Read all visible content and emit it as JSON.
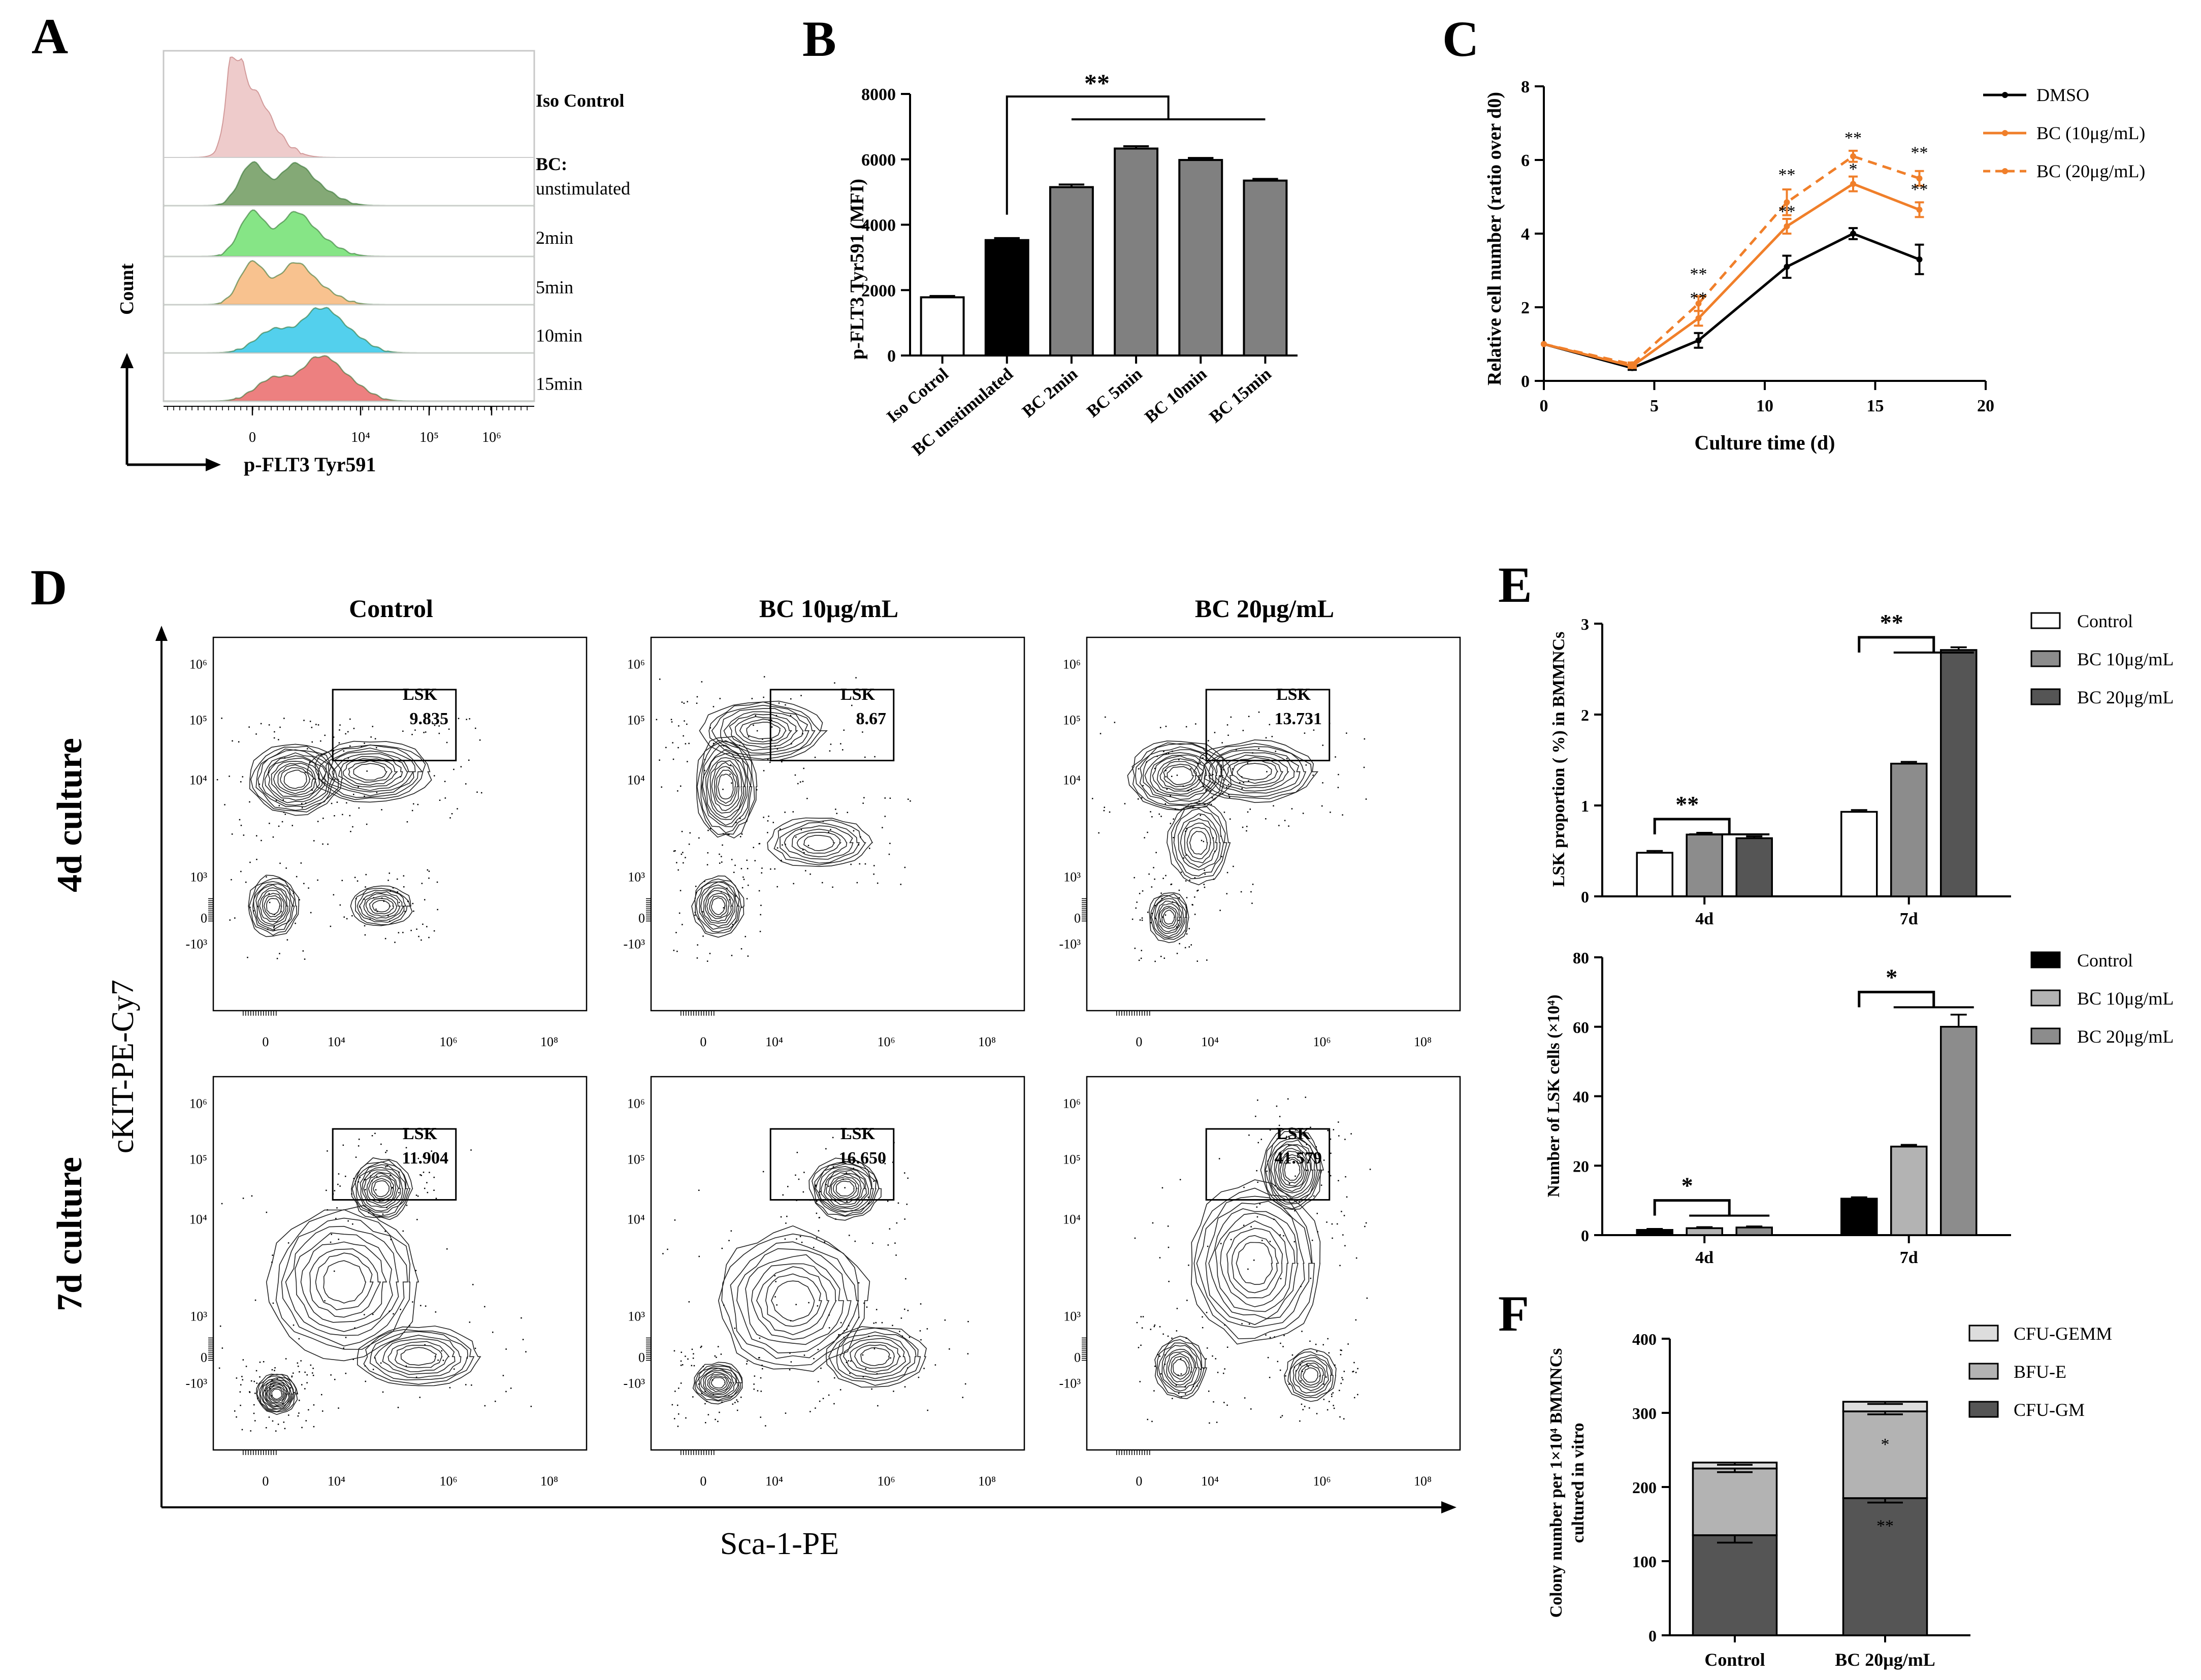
{
  "colors": {
    "iso": "#e8b9b9",
    "unstim": "#6f9a5e",
    "m2": "#71e071",
    "m5": "#f7b77b",
    "m10": "#35c8ea",
    "m15": "#ea6a6a",
    "orange": "#f07f2a",
    "dark_gray": "#555555",
    "mid_gray": "#8c8c8c",
    "light_gray": "#b3b3b3",
    "black": "#000000"
  },
  "panels": {
    "A": {
      "letter": "A",
      "ylabel": "Count",
      "xlabel": "p-FLT3 Tyr591",
      "ticks": [
        "0",
        "10⁴",
        "10⁵",
        "10⁶"
      ],
      "rows": [
        {
          "label": "Iso Control",
          "bold": true,
          "color_key": "iso",
          "shape": "iso"
        },
        {
          "label": "BC:",
          "label2": "unstimulated",
          "bold": true,
          "color_key": "unstim",
          "shape": "bimodal"
        },
        {
          "label": "2min",
          "bold": false,
          "color_key": "m2",
          "shape": "bimodal"
        },
        {
          "label": "5min",
          "bold": false,
          "color_key": "m5",
          "shape": "bimodal"
        },
        {
          "label": "10min",
          "bold": false,
          "color_key": "m10",
          "shape": "shifted"
        },
        {
          "label": "15min",
          "bold": false,
          "color_key": "m15",
          "shape": "shifted"
        }
      ]
    },
    "B": {
      "letter": "B",
      "sig": "**",
      "chart_data": {
        "type": "bar",
        "ylabel": "p-FLT3 Tyr591 (MFI)",
        "ylim": [
          0,
          8000
        ],
        "yticks": [
          "0",
          "2000",
          "4000",
          "6000",
          "8000"
        ],
        "categories": [
          "Iso Cotrol",
          "BC unstimulated",
          "BC 2min",
          "BC 5min",
          "BC 10min",
          "BC 15min"
        ],
        "values": [
          1780,
          3530,
          5150,
          6330,
          5980,
          5350
        ],
        "errors": [
          40,
          60,
          80,
          70,
          60,
          50
        ],
        "fills": [
          "#ffffff",
          "#000000",
          "#808080",
          "#808080",
          "#808080",
          "#808080"
        ]
      }
    },
    "C": {
      "letter": "C",
      "chart_data": {
        "type": "line",
        "xlabel": "Culture time (d)",
        "ylabel": "Relative cell number (ratio over d0)",
        "xlim": [
          0,
          20
        ],
        "ylim": [
          0,
          8
        ],
        "xticks": [
          "0",
          "5",
          "10",
          "15",
          "20"
        ],
        "yticks": [
          "0",
          "2",
          "4",
          "6",
          "8"
        ],
        "x": [
          0,
          4,
          7,
          11,
          14,
          17
        ],
        "series": [
          {
            "name": "DMSO",
            "values": [
              1.0,
              0.35,
              1.1,
              3.1,
              4.0,
              3.3
            ],
            "errors": [
              0,
              0.05,
              0.2,
              0.3,
              0.15,
              0.4
            ],
            "style": "solid",
            "color_key": "black"
          },
          {
            "name": "BC (10μg/mL)",
            "values": [
              1.0,
              0.4,
              1.7,
              4.2,
              5.35,
              4.65
            ],
            "errors": [
              0,
              0.05,
              0.2,
              0.2,
              0.2,
              0.2
            ],
            "style": "solid",
            "color_key": "orange"
          },
          {
            "name": "BC (20μg/mL)",
            "values": [
              1.0,
              0.45,
              2.1,
              4.85,
              6.1,
              5.5
            ],
            "errors": [
              0,
              0.05,
              0.2,
              0.35,
              0.15,
              0.2
            ],
            "style": "dashed",
            "color_key": "orange"
          }
        ],
        "annotations": [
          "**",
          "**",
          "**",
          "**",
          "**",
          "*",
          "**",
          "**"
        ]
      }
    },
    "D": {
      "letter": "D",
      "col_titles": [
        "Control",
        "BC 10μg/mL",
        "BC 20μg/mL"
      ],
      "row_titles": [
        "4d culture",
        "7d culture"
      ],
      "ylabel": "cKIT-PE-Cy7",
      "xlabel": "Sca-1-PE",
      "gate_label": "LSK",
      "gate_values": [
        "9.835",
        "8.67",
        "13.731",
        "11.904",
        "16.650",
        "41.579"
      ],
      "yticks": [
        "10⁶",
        "10⁵",
        "10⁴",
        "10³",
        "0",
        "-10³"
      ],
      "xticks": [
        "0",
        "10⁴",
        "10⁶",
        "10⁸"
      ]
    },
    "E": {
      "letter": "E",
      "chart_data": [
        {
          "type": "bar",
          "ylabel": "LSK proportion ( %) in BMMNCs",
          "ylim": [
            0,
            3
          ],
          "yticks": [
            "0",
            "1",
            "2",
            "3"
          ],
          "categories": [
            "4d",
            "7d"
          ],
          "series": [
            {
              "name": "Control",
              "values": [
                0.48,
                0.93
              ],
              "errors": [
                0.02,
                0.02
              ],
              "fill": "#ffffff"
            },
            {
              "name": "BC 10μg/mL",
              "values": [
                0.68,
                1.46
              ],
              "errors": [
                0.02,
                0.02
              ],
              "fill": "#8c8c8c"
            },
            {
              "name": "BC 20μg/mL",
              "values": [
                0.64,
                2.71
              ],
              "errors": [
                0.02,
                0.03
              ],
              "fill": "#555555"
            }
          ],
          "sig": [
            "**",
            "**"
          ]
        },
        {
          "type": "bar",
          "ylabel": "Number of LSK cells (×10⁴)",
          "ylim": [
            0,
            80
          ],
          "yticks": [
            "0",
            "20",
            "40",
            "60",
            "80"
          ],
          "categories": [
            "4d",
            "7d"
          ],
          "series": [
            {
              "name": "Control",
              "values": [
                1.5,
                10.5
              ],
              "errors": [
                0.3,
                0.4
              ],
              "fill": "#000000"
            },
            {
              "name": "BC 10μg/mL",
              "values": [
                2.0,
                25.5
              ],
              "errors": [
                0.3,
                0.5
              ],
              "fill": "#b3b3b3"
            },
            {
              "name": "BC 20μg/mL",
              "values": [
                2.2,
                60.0
              ],
              "errors": [
                0.3,
                3.5
              ],
              "fill": "#8c8c8c"
            }
          ],
          "sig": [
            "*",
            "*"
          ]
        }
      ]
    },
    "F": {
      "letter": "F",
      "chart_data": {
        "type": "bar",
        "stacked": true,
        "ylabel": "Colony number per 1×10⁴ BMMNCs",
        "ylabel2": "cultured in vitro",
        "ylim": [
          0,
          400
        ],
        "yticks": [
          "0",
          "100",
          "200",
          "300",
          "400"
        ],
        "categories": [
          "Control",
          "BC 20μg/mL"
        ],
        "series": [
          {
            "name": "CFU-GM",
            "values": [
              135,
              185
            ],
            "errors": [
              10,
              6
            ],
            "fill": "#555555"
          },
          {
            "name": "BFU-E",
            "values": [
              90,
              117
            ],
            "errors": [
              5,
              4
            ],
            "fill": "#b3b3b3"
          },
          {
            "name": "CFU-GEMM",
            "values": [
              8,
              13
            ],
            "errors": [
              3,
              3
            ],
            "fill": "#dddddd"
          }
        ],
        "legend_order": [
          "CFU-GEMM",
          "BFU-E",
          "CFU-GM"
        ],
        "annotations": [
          "*",
          "**"
        ]
      }
    }
  }
}
